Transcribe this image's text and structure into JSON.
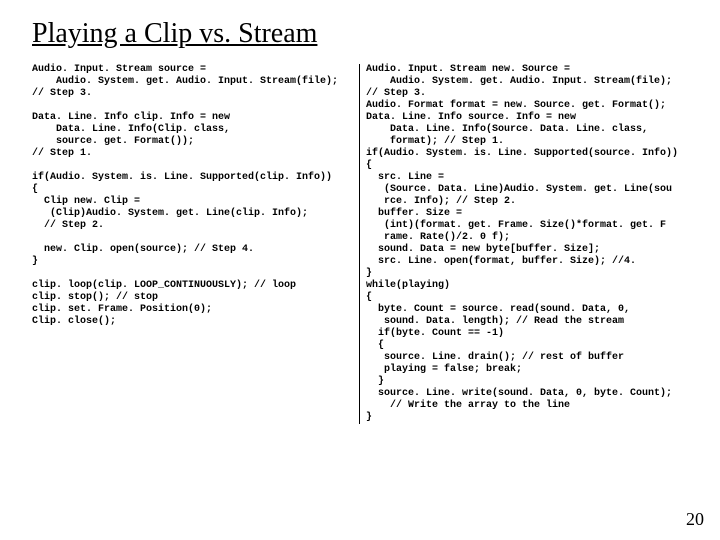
{
  "title": "Playing a Clip vs. Stream",
  "title_fontsize": "28px",
  "title_color": "#000000",
  "code_fontsize": "10px",
  "code_lineheight": "12px",
  "code_color": "#000000",
  "pagenum": "20",
  "pagenum_fontsize": "18px",
  "left": {
    "l01": "Audio. Input. Stream source =",
    "l02": "    Audio. System. get. Audio. Input. Stream(file);",
    "l03": "// Step 3.",
    "l04": "",
    "l05": "Data. Line. Info clip. Info = new",
    "l06": "    Data. Line. Info(Clip. class,",
    "l07": "    source. get. Format());",
    "l08": "// Step 1.",
    "l09": "",
    "l10": "if(Audio. System. is. Line. Supported(clip. Info))",
    "l11": "{",
    "l12": "  Clip new. Clip =",
    "l13": "   (Clip)Audio. System. get. Line(clip. Info);",
    "l14": "  // Step 2.",
    "l15": "",
    "l16": "  new. Clip. open(source); // Step 4.",
    "l17": "}",
    "l18": "",
    "l19": "clip. loop(clip. LOOP_CONTINUOUSLY); // loop",
    "l20": "clip. stop(); // stop",
    "l21": "clip. set. Frame. Position(0);",
    "l22": "Clip. close();"
  },
  "right": {
    "r01": "Audio. Input. Stream new. Source =",
    "r02": "    Audio. System. get. Audio. Input. Stream(file);",
    "r03": "// Step 3.",
    "r04": "Audio. Format format = new. Source. get. Format();",
    "r05": "Data. Line. Info source. Info = new",
    "r06": "    Data. Line. Info(Source. Data. Line. class,",
    "r07": "    format); // Step 1.",
    "r08": "if(Audio. System. is. Line. Supported(source. Info))",
    "r09": "{",
    "r10": "  src. Line =",
    "r11": "   (Source. Data. Line)Audio. System. get. Line(sou",
    "r12": "   rce. Info); // Step 2.",
    "r13": "  buffer. Size =",
    "r14": "   (int)(format. get. Frame. Size()*format. get. F",
    "r15": "   rame. Rate()/2. 0 f);",
    "r16": "  sound. Data = new byte[buffer. Size];",
    "r17": "  src. Line. open(format, buffer. Size); //4.",
    "r18": "}",
    "r19": "while(playing)",
    "r20": "{",
    "r21": "  byte. Count = source. read(sound. Data, 0,",
    "r22": "   sound. Data. length); // Read the stream",
    "r23": "  if(byte. Count == -1)",
    "r24": "  {",
    "r25": "   source. Line. drain(); // rest of buffer",
    "r26": "   playing = false; break;",
    "r27": "  }",
    "r28": "  source. Line. write(sound. Data, 0, byte. Count);",
    "r29": "    // Write the array to the line",
    "r30": "}"
  }
}
